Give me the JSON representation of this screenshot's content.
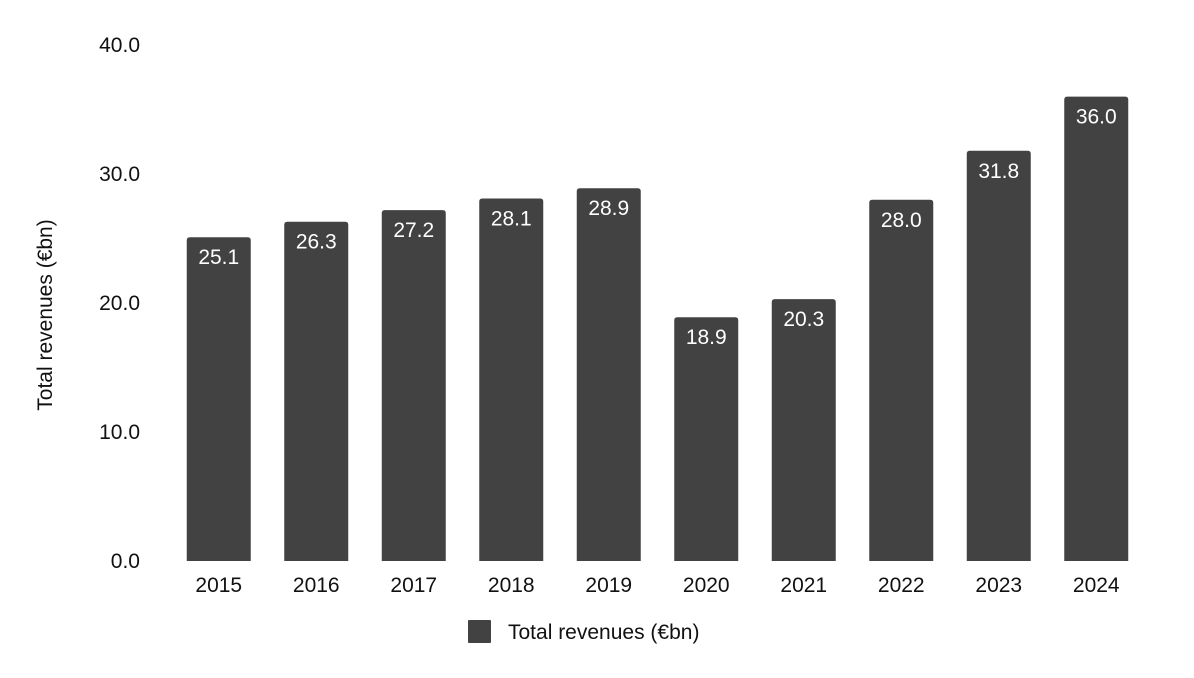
{
  "chart_data": {
    "type": "bar",
    "title": "",
    "xlabel": "",
    "ylabel": "Total revenues (€bn)",
    "categories": [
      "2015",
      "2016",
      "2017",
      "2018",
      "2019",
      "2020",
      "2021",
      "2022",
      "2023",
      "2024"
    ],
    "series": [
      {
        "name": "Total revenues (€bn)",
        "values": [
          25.1,
          26.3,
          27.2,
          28.1,
          28.9,
          18.9,
          20.3,
          28.0,
          31.8,
          36.0
        ],
        "value_labels": [
          "25.1",
          "26.3",
          "27.2",
          "28.1",
          "28.9",
          "18.9",
          "20.3",
          "28.0",
          "31.8",
          "36.0"
        ],
        "color": "#424242"
      }
    ],
    "ylim": [
      0,
      40
    ],
    "yticks": [
      0,
      10,
      20,
      30,
      40
    ],
    "ytick_labels": [
      "0.0",
      "10.0",
      "20.0",
      "30.0",
      "40.0"
    ],
    "grid": false,
    "legend": {
      "position": "bottom-center",
      "entries": [
        "Total revenues (€bn)"
      ]
    },
    "colors": {
      "bar": "#424242",
      "data_label": "#ffffff",
      "text": "#111111"
    }
  }
}
